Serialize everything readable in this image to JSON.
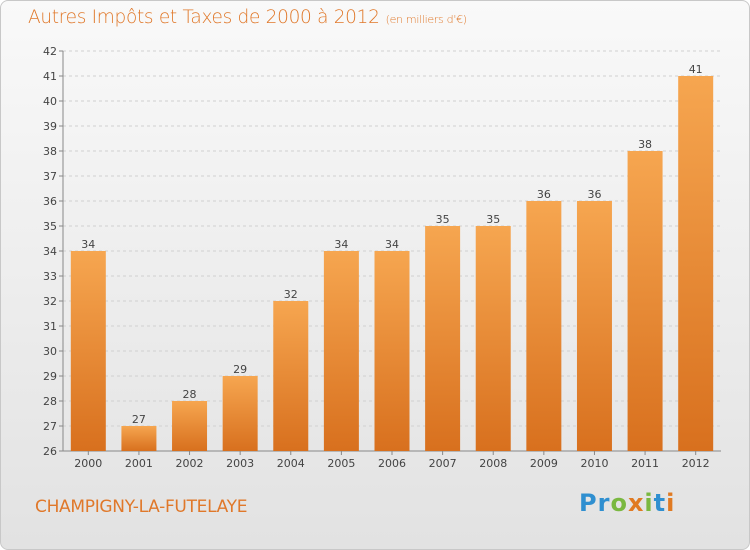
{
  "chart_data": {
    "type": "bar",
    "title": "Autres Impôts et Taxes de 2000 à 2012",
    "subtitle": "(en milliers d'€)",
    "categories": [
      "2000",
      "2001",
      "2002",
      "2003",
      "2004",
      "2005",
      "2006",
      "2007",
      "2008",
      "2009",
      "2010",
      "2011",
      "2012"
    ],
    "values": [
      34,
      27,
      28,
      29,
      32,
      34,
      34,
      35,
      35,
      36,
      36,
      38,
      41
    ],
    "ylim": [
      26,
      42
    ],
    "yticks": [
      26,
      27,
      28,
      29,
      30,
      31,
      32,
      33,
      34,
      35,
      36,
      37,
      38,
      39,
      40,
      41,
      42
    ],
    "grid": true,
    "xlabel": "",
    "ylabel": "",
    "colors": {
      "bar_top": "#f6a650",
      "bar_bottom": "#d8701e",
      "title": "#e0782a"
    }
  },
  "commune": "CHAMPIGNY-LA-FUTELAYE",
  "logo": {
    "text": "Proxiti",
    "letters": [
      {
        "ch": "P",
        "color": "#2f8fd0"
      },
      {
        "ch": "r",
        "color": "#2f8fd0"
      },
      {
        "ch": "o",
        "color": "#7ab840"
      },
      {
        "ch": "x",
        "color": "#e07a22"
      },
      {
        "ch": "i",
        "color": "#7ab840"
      },
      {
        "ch": "t",
        "color": "#2f8fd0"
      },
      {
        "ch": "i",
        "color": "#e07a22"
      }
    ]
  }
}
